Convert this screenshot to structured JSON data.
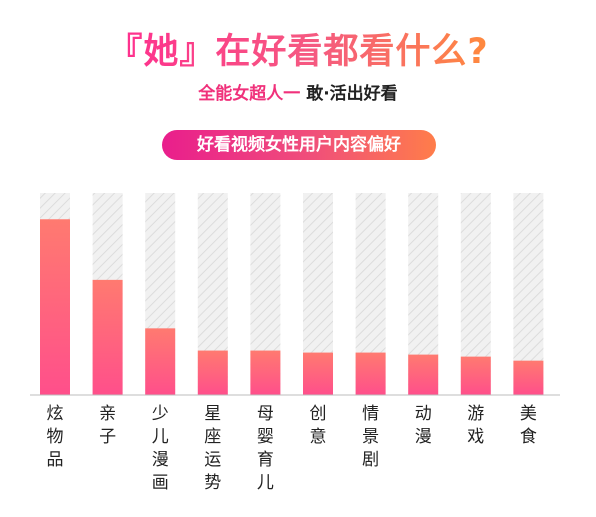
{
  "header": {
    "title": "『她』在好看都看什么?",
    "subtitle_pink": "全能女超人一",
    "subtitle_dark": "敢·活出好看",
    "pill_label": "好看视频女性用户内容偏好"
  },
  "colors": {
    "bar_top": "#ff7a70",
    "bar_bottom": "#ff4f8b",
    "track": "#f1f1f1",
    "hatch": "#dcdcdc",
    "axis": "#bdbdbd",
    "label": "#222222"
  },
  "chart_data": {
    "type": "bar",
    "categories": [
      "炫物品",
      "亲子",
      "少儿漫画",
      "星座运势",
      "母婴育儿",
      "创意",
      "情景剧",
      "动漫",
      "游戏",
      "美食"
    ],
    "values": [
      87,
      57,
      33,
      22,
      22,
      21,
      21,
      20,
      19,
      17
    ],
    "ylim": [
      0,
      100
    ],
    "title": "好看视频女性用户内容偏好",
    "xlabel": "",
    "ylabel": "",
    "grid": false,
    "legend": "none"
  }
}
